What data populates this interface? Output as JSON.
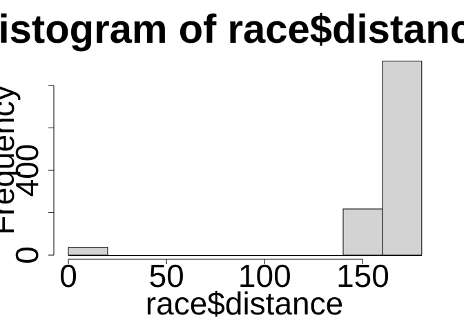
{
  "chart_data": {
    "type": "bar",
    "title": "Histogram of race$distance",
    "xlabel": "race$distance",
    "ylabel": "Frequency",
    "bins": [
      {
        "start": 0,
        "end": 20,
        "count": 37
      },
      {
        "start": 20,
        "end": 40,
        "count": 0
      },
      {
        "start": 40,
        "end": 60,
        "count": 0
      },
      {
        "start": 60,
        "end": 80,
        "count": 0
      },
      {
        "start": 80,
        "end": 100,
        "count": 0
      },
      {
        "start": 100,
        "end": 120,
        "count": 0
      },
      {
        "start": 120,
        "end": 140,
        "count": 0
      },
      {
        "start": 140,
        "end": 160,
        "count": 218
      },
      {
        "start": 160,
        "end": 180,
        "count": 915
      }
    ],
    "xlim": [
      0,
      180
    ],
    "ylim": [
      0,
      900
    ],
    "xticks": [
      0,
      50,
      100,
      150
    ],
    "xtick_labels": [
      "0",
      "50",
      "100",
      "150"
    ],
    "yticks": [
      0,
      200,
      400,
      600,
      800
    ],
    "ytick_labels": [
      "0",
      "",
      "400",
      "",
      ""
    ],
    "bar_fill": "#d3d3d3",
    "bar_stroke": "#000000",
    "grid": false,
    "legend": "none"
  }
}
